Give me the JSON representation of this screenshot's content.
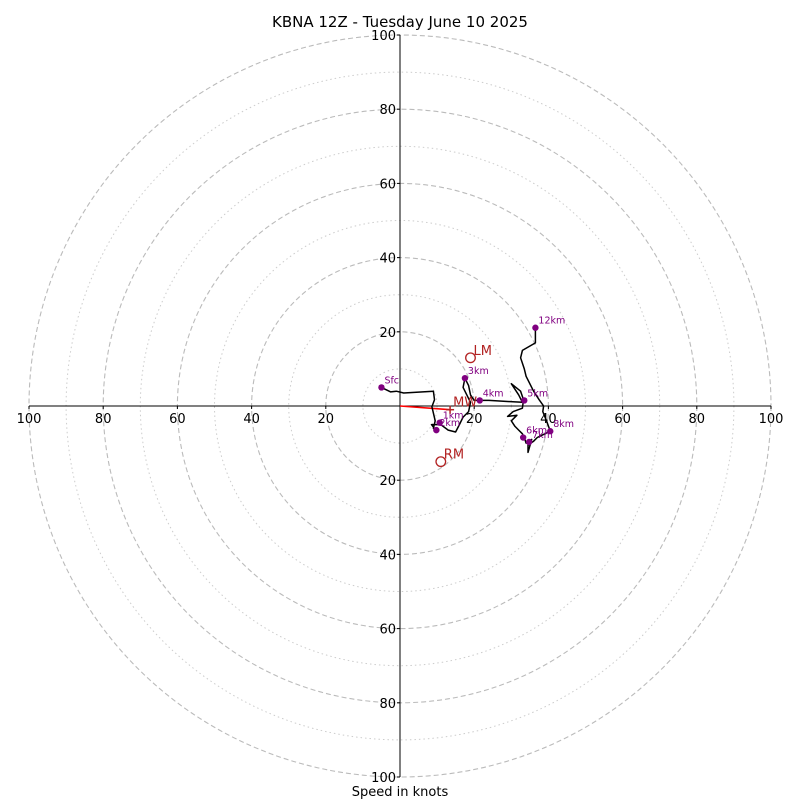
{
  "chart_data": {
    "type": "hodograph",
    "title": "KBNA 12Z - Tuesday June 10 2025",
    "xlabel": "Speed in knots",
    "range_max": 100,
    "rings": {
      "major": [
        20,
        40,
        60,
        80,
        100
      ],
      "minor": [
        10,
        30,
        50,
        70,
        90
      ]
    },
    "ticks": {
      "x_left": [
        "100",
        "80",
        "60",
        "40",
        "20"
      ],
      "x_right": [
        "20",
        "40",
        "60",
        "80",
        "100"
      ],
      "y_top": [
        "100",
        "80",
        "60",
        "40",
        "20"
      ],
      "y_bottom": [
        "20",
        "40",
        "60",
        "80",
        "100"
      ]
    },
    "colors": {
      "trace": "#000000",
      "height_marker": "#800080",
      "storm_motion": "#b22222",
      "mean_wind_vector": "#ff0000",
      "ring": "#bbbbbb"
    },
    "trace_units": "knots (u east, v north)",
    "trace": [
      [
        -5,
        5
      ],
      [
        -2.5,
        3.8
      ],
      [
        -1,
        4
      ],
      [
        1,
        3.5
      ],
      [
        9,
        4
      ],
      [
        9.3,
        1.7
      ],
      [
        8.6,
        -0.2
      ],
      [
        9.5,
        -4
      ],
      [
        9,
        -6
      ],
      [
        10,
        -7
      ],
      [
        8.5,
        -5
      ],
      [
        11,
        -5
      ],
      [
        13,
        -6.5
      ],
      [
        15,
        -7
      ],
      [
        16,
        -5
      ],
      [
        17,
        -3
      ],
      [
        18.5,
        -1.5
      ],
      [
        19,
        1
      ],
      [
        18,
        3
      ],
      [
        17,
        5
      ],
      [
        17.5,
        7.5
      ],
      [
        18.5,
        5.5
      ],
      [
        19,
        3
      ],
      [
        20,
        1.5
      ],
      [
        24,
        1.5
      ],
      [
        29,
        1.2
      ],
      [
        33,
        1
      ],
      [
        32,
        3
      ],
      [
        30,
        6
      ],
      [
        32.5,
        4
      ],
      [
        33.3,
        1.7
      ],
      [
        33,
        -0.6
      ],
      [
        30.5,
        -1.5
      ],
      [
        29,
        -2.8
      ],
      [
        31.5,
        -2.5
      ],
      [
        30,
        -4
      ],
      [
        31,
        -5.5
      ],
      [
        32,
        -6.5
      ],
      [
        33,
        -7.5
      ],
      [
        33.5,
        -8.5
      ],
      [
        34,
        -10
      ],
      [
        35.5,
        -9
      ],
      [
        34.5,
        -12.5
      ],
      [
        34.5,
        -10.5
      ],
      [
        36,
        -9.5
      ],
      [
        37,
        -8.5
      ],
      [
        38,
        -8
      ],
      [
        40.5,
        -6.8
      ],
      [
        39.5,
        -4
      ],
      [
        38.5,
        -1.5
      ],
      [
        38.7,
        0
      ],
      [
        37.5,
        1.7
      ],
      [
        36,
        4
      ],
      [
        35.5,
        5
      ],
      [
        34,
        8
      ],
      [
        33.5,
        10
      ],
      [
        32.5,
        13
      ],
      [
        33,
        15
      ],
      [
        36.5,
        17
      ],
      [
        36.5,
        21.1
      ]
    ],
    "height_markers": [
      {
        "label": "Sfc",
        "u": -5,
        "v": 5
      },
      {
        "label": "1km",
        "u": 10.7,
        "v": -4.5
      },
      {
        "label": "2km",
        "u": 9.8,
        "v": -6.5
      },
      {
        "label": "3km",
        "u": 17.5,
        "v": 7.5
      },
      {
        "label": "4km",
        "u": 21.5,
        "v": 1.5
      },
      {
        "label": "5km",
        "u": 33.5,
        "v": 1.5
      },
      {
        "label": "6km",
        "u": 33.2,
        "v": -8.5
      },
      {
        "label": "7km",
        "u": 34.8,
        "v": -9.7
      },
      {
        "label": "8km",
        "u": 40.5,
        "v": -6.8
      },
      {
        "label": "12km",
        "u": 36.5,
        "v": 21.1
      }
    ],
    "storm_motion": [
      {
        "label": "LM",
        "u": 19,
        "v": 13
      },
      {
        "label": "MW",
        "u": 13.5,
        "v": -1
      },
      {
        "label": "RM",
        "u": 11,
        "v": -15
      }
    ],
    "mean_wind_vector": {
      "from": [
        0,
        0
      ],
      "to": [
        13.5,
        -1
      ]
    }
  }
}
